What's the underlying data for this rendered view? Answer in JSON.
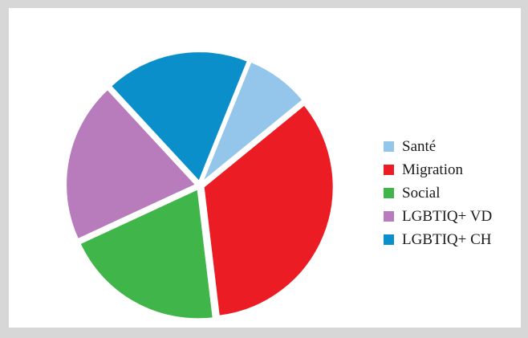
{
  "chart_data": {
    "type": "pie",
    "title": "",
    "start_angle_deg": 22,
    "slices": [
      {
        "label": "Santé",
        "value": 8,
        "color": "#93c6ea"
      },
      {
        "label": "Migration",
        "value": 34,
        "color": "#ec1c24"
      },
      {
        "label": "Social",
        "value": 20,
        "color": "#40b54a"
      },
      {
        "label": "LGBTIQ+ VD",
        "value": 20,
        "color": "#b87bbc"
      },
      {
        "label": "LGBTIQ+ CH",
        "value": 18,
        "color": "#0b8fcb"
      }
    ],
    "legend_position": "right"
  }
}
